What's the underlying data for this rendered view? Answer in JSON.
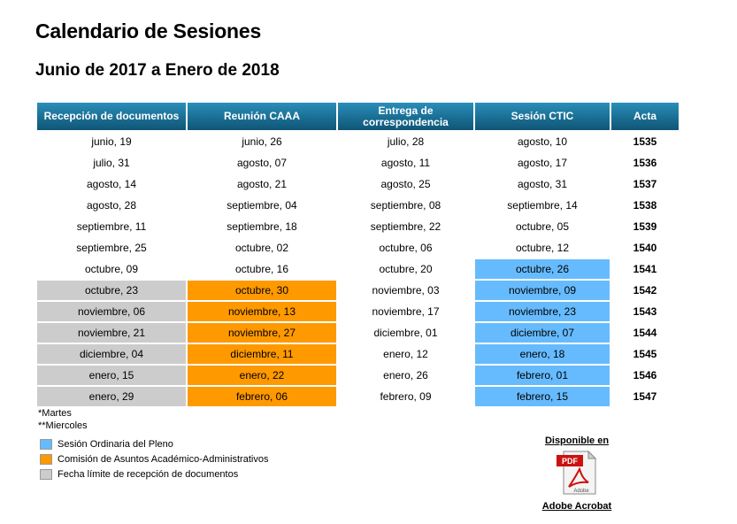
{
  "page": {
    "title": "Calendario de Sesiones",
    "subtitle": "Junio de 2017 a Enero de 2018"
  },
  "table": {
    "headers": [
      "Recepción de documentos",
      "Reunión CAAA",
      "Entrega de correspondencia",
      "Sesión CTIC",
      "Acta"
    ],
    "rows": [
      {
        "cells": [
          "junio, 19",
          "junio, 26",
          "julio, 28",
          "agosto, 10",
          "1535"
        ],
        "highlight": [
          "",
          "",
          "",
          "",
          ""
        ]
      },
      {
        "cells": [
          "julio, 31",
          "agosto, 07",
          "agosto, 11",
          "agosto, 17",
          "1536"
        ],
        "highlight": [
          "",
          "",
          "",
          "",
          ""
        ]
      },
      {
        "cells": [
          "agosto, 14",
          "agosto, 21",
          "agosto, 25",
          "agosto, 31",
          "1537"
        ],
        "highlight": [
          "",
          "",
          "",
          "",
          ""
        ]
      },
      {
        "cells": [
          "agosto, 28",
          "septiembre, 04",
          "septiembre, 08",
          "septiembre, 14",
          "1538"
        ],
        "highlight": [
          "",
          "",
          "",
          "",
          ""
        ]
      },
      {
        "cells": [
          "septiembre, 11",
          "septiembre, 18",
          "septiembre, 22",
          "octubre, 05",
          "1539"
        ],
        "highlight": [
          "",
          "",
          "",
          "",
          ""
        ]
      },
      {
        "cells": [
          "septiembre, 25",
          "octubre, 02",
          "octubre, 06",
          "octubre, 12",
          "1540"
        ],
        "highlight": [
          "",
          "",
          "",
          "",
          ""
        ]
      },
      {
        "cells": [
          "octubre, 09",
          "octubre, 16",
          "octubre, 20",
          "octubre, 26",
          "1541"
        ],
        "highlight": [
          "",
          "",
          "",
          "blue",
          ""
        ]
      },
      {
        "cells": [
          "octubre, 23",
          "octubre, 30",
          "noviembre, 03",
          "noviembre, 09",
          "1542"
        ],
        "highlight": [
          "gray",
          "orange",
          "",
          "blue",
          ""
        ]
      },
      {
        "cells": [
          "noviembre, 06",
          "noviembre, 13",
          "noviembre, 17",
          "noviembre, 23",
          "1543"
        ],
        "highlight": [
          "gray",
          "orange",
          "",
          "blue",
          ""
        ]
      },
      {
        "cells": [
          "noviembre, 21",
          "noviembre, 27",
          "diciembre, 01",
          "diciembre, 07",
          "1544"
        ],
        "highlight": [
          "gray",
          "orange",
          "",
          "blue",
          ""
        ]
      },
      {
        "cells": [
          "diciembre, 04",
          "diciembre, 11",
          "enero, 12",
          "enero, 18",
          "1545"
        ],
        "highlight": [
          "gray",
          "orange",
          "",
          "blue",
          ""
        ]
      },
      {
        "cells": [
          "enero, 15",
          "enero, 22",
          "enero, 26",
          "febrero, 01",
          "1546"
        ],
        "highlight": [
          "gray",
          "orange",
          "",
          "blue",
          ""
        ]
      },
      {
        "cells": [
          "enero, 29",
          "febrero, 06",
          "febrero, 09",
          "febrero, 15",
          "1547"
        ],
        "highlight": [
          "gray",
          "orange",
          "",
          "blue",
          ""
        ]
      }
    ]
  },
  "notes": {
    "martes": "*Martes",
    "miercoles": "**Miercoles"
  },
  "legend": {
    "items": [
      {
        "label": "Sesión Ordinaria del Pleno",
        "color": "#66bbff"
      },
      {
        "label": "Comisión de Asuntos Académico-Administrativos",
        "color": "#ff9900"
      },
      {
        "label": "Fecha límite de recepción de documentos",
        "color": "#cccccc"
      }
    ]
  },
  "pdf": {
    "available_label": "Disponible en",
    "icon": "pdf-file-icon",
    "icon_badge": "PDF",
    "icon_logo": "Adobe",
    "link_label": "Adobe Acrobat"
  }
}
